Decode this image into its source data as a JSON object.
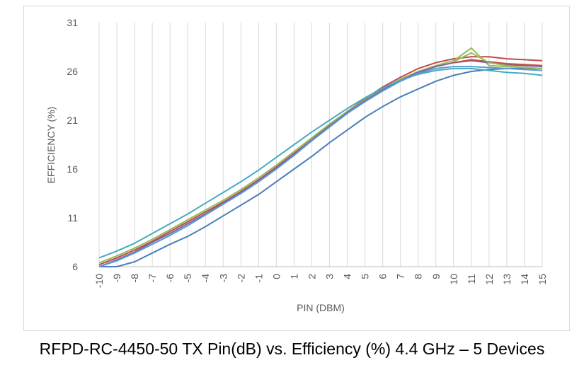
{
  "caption": "RFPD-RC-4450-50 TX Pin(dB) vs. Efficiency (%) 4.4 GHz – 5 Devices",
  "chart_data": {
    "type": "line",
    "xlabel": "PIN (DBM)",
    "ylabel": "EFFICIENCY (%)",
    "x": [
      -10,
      -9,
      -8,
      -7,
      -6,
      -5,
      -4,
      -3,
      -2,
      -1,
      0,
      1,
      2,
      3,
      4,
      5,
      6,
      7,
      8,
      9,
      10,
      11,
      12,
      13,
      14,
      15
    ],
    "xlim": [
      -10,
      15
    ],
    "ylim": [
      6,
      31
    ],
    "yticks": [
      6,
      11,
      16,
      21,
      26,
      31
    ],
    "grid": "vertical",
    "legend": "none",
    "series": [
      {
        "color": "#4a7ebb",
        "values": [
          5.5,
          5.8,
          6.5,
          7.4,
          8.3,
          9.1,
          10.1,
          11.2,
          12.3,
          13.4,
          14.7,
          16.0,
          17.3,
          18.7,
          20.0,
          21.3,
          22.4,
          23.4,
          24.2,
          25.0,
          25.6,
          26.0,
          26.2,
          26.3,
          26.3,
          26.3
        ]
      },
      {
        "color": "#be4b48",
        "values": [
          6.2,
          6.9,
          7.7,
          8.6,
          9.6,
          10.6,
          11.6,
          12.6,
          13.7,
          14.9,
          16.2,
          17.6,
          19.0,
          20.5,
          21.9,
          23.2,
          24.4,
          25.4,
          26.3,
          26.9,
          27.3,
          27.5,
          27.5,
          27.3,
          27.2,
          27.1
        ]
      },
      {
        "color": "#98b954",
        "values": [
          6.4,
          7.1,
          7.9,
          8.8,
          9.8,
          10.8,
          11.8,
          12.8,
          13.9,
          15.1,
          16.4,
          17.8,
          19.2,
          20.6,
          21.9,
          23.1,
          24.2,
          25.2,
          26.0,
          26.6,
          27.1,
          28.4,
          26.6,
          26.5,
          26.4,
          26.3
        ]
      },
      {
        "color": "#7d60a0",
        "values": [
          6.0,
          6.7,
          7.5,
          8.5,
          9.4,
          10.4,
          11.4,
          12.5,
          13.6,
          14.8,
          16.1,
          17.5,
          19.0,
          20.4,
          21.8,
          23.0,
          24.1,
          25.1,
          25.9,
          26.5,
          26.9,
          27.1,
          26.9,
          26.7,
          26.6,
          26.5
        ]
      },
      {
        "color": "#46aac5",
        "values": [
          6.9,
          7.6,
          8.4,
          9.4,
          10.4,
          11.4,
          12.5,
          13.6,
          14.7,
          15.9,
          17.2,
          18.5,
          19.8,
          21.0,
          22.2,
          23.3,
          24.3,
          25.1,
          25.7,
          26.1,
          26.3,
          26.3,
          26.1,
          25.9,
          25.8,
          25.6
        ]
      },
      {
        "color": "#5b9bd5",
        "values": [
          5.9,
          6.6,
          7.4,
          8.3,
          9.2,
          10.2,
          11.3,
          12.4,
          13.5,
          14.7,
          16.0,
          17.4,
          18.9,
          20.3,
          21.7,
          22.9,
          24.0,
          25.0,
          25.8,
          26.3,
          26.5,
          26.5,
          26.4,
          26.3,
          26.2,
          26.1
        ]
      },
      {
        "color": "#c0504d",
        "values": [
          null,
          null,
          null,
          null,
          null,
          null,
          null,
          null,
          null,
          null,
          null,
          null,
          null,
          null,
          null,
          null,
          null,
          null,
          null,
          null,
          26.9,
          27.2,
          27.0,
          26.8,
          26.7,
          26.6
        ]
      },
      {
        "color": "#9bbb59",
        "values": [
          null,
          null,
          null,
          null,
          null,
          null,
          null,
          null,
          null,
          null,
          null,
          null,
          null,
          null,
          null,
          null,
          null,
          null,
          null,
          null,
          27.0,
          27.9,
          26.9,
          26.6,
          26.4,
          26.3
        ]
      }
    ]
  }
}
